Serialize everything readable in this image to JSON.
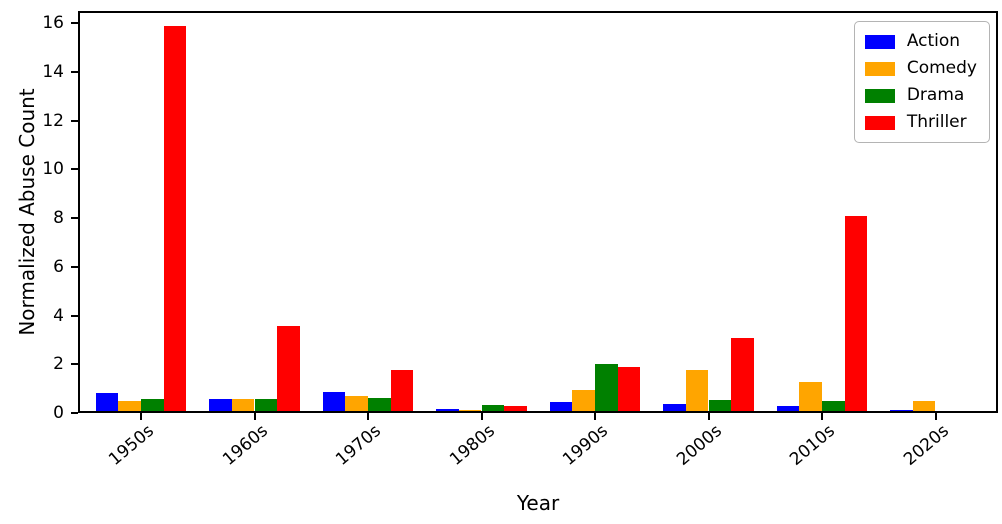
{
  "chart_data": {
    "type": "bar",
    "title": "",
    "xlabel": "Year",
    "ylabel": "Normalized Abuse Count",
    "categories": [
      "1950s",
      "1960s",
      "1970s",
      "1980s",
      "1990s",
      "2000s",
      "2010s",
      "2020s"
    ],
    "series": [
      {
        "name": "Action",
        "color": "#0000ff",
        "values": [
          0.75,
          0.5,
          0.8,
          0.08,
          0.35,
          0.3,
          0.22,
          0.06
        ]
      },
      {
        "name": "Comedy",
        "color": "#ffa500",
        "values": [
          0.4,
          0.5,
          0.6,
          0.05,
          0.85,
          1.7,
          1.2,
          0.42
        ]
      },
      {
        "name": "Drama",
        "color": "#008000",
        "values": [
          0.5,
          0.5,
          0.55,
          0.25,
          1.95,
          0.45,
          0.4,
          0
        ]
      },
      {
        "name": "Thriller",
        "color": "#ff0000",
        "values": [
          15.8,
          3.5,
          1.7,
          0.2,
          1.8,
          3.0,
          8.0,
          0
        ]
      }
    ],
    "ylim": [
      0,
      16.5
    ],
    "yticks": [
      0,
      2,
      4,
      6,
      8,
      10,
      12,
      14,
      16
    ],
    "grid": false,
    "legend": {
      "position": "upper right",
      "entries": [
        "Action",
        "Comedy",
        "Drama",
        "Thriller"
      ]
    }
  }
}
